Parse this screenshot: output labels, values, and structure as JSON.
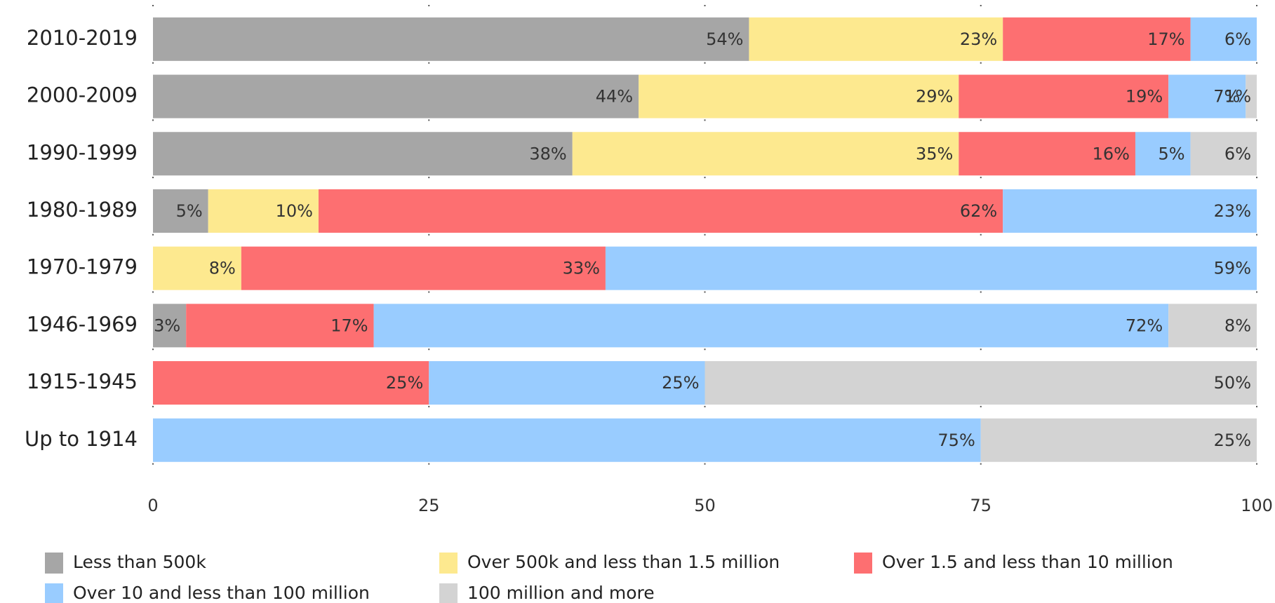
{
  "chart_data": {
    "type": "stacked_barh",
    "categories": [
      "2010-2019",
      "2000-2009",
      "1990-1999",
      "1980-1989",
      "1970-1979",
      "1946-1969",
      "1915-1945",
      "Up to 1914"
    ],
    "series": [
      {
        "name": "Less than 500k",
        "color": "#a6a6a6",
        "values": [
          54,
          44,
          38,
          5,
          null,
          3,
          null,
          null
        ],
        "value_labels": [
          "54%",
          "44%",
          "38%",
          "5%",
          null,
          "3%",
          null,
          null
        ]
      },
      {
        "name": "Over 500k and less than 1.5 million",
        "color": "#fde98f",
        "values": [
          23,
          29,
          35,
          10,
          8,
          null,
          null,
          null
        ],
        "value_labels": [
          "23%",
          "29%",
          "35%",
          "10%",
          "8%",
          null,
          null,
          null
        ]
      },
      {
        "name": "Over 1.5 and less than 10 million",
        "color": "#fd6f71",
        "values": [
          17,
          19,
          16,
          62,
          33,
          17,
          25,
          null
        ],
        "value_labels": [
          "17%",
          "19%",
          "16%",
          "62%",
          "33%",
          "17%",
          "25%",
          null
        ]
      },
      {
        "name": "Over 10 and less than 100 million",
        "color": "#99ccff",
        "values": [
          6,
          7,
          5,
          23,
          59,
          72,
          25,
          75
        ],
        "value_labels": [
          "6%",
          "7%",
          "5%",
          "23%",
          "59%",
          "72%",
          "25%",
          "75%"
        ]
      },
      {
        "name": "100 million and more",
        "color": "#d3d3d3",
        "values": [
          null,
          1,
          6,
          null,
          null,
          8,
          50,
          25
        ],
        "value_labels": [
          null,
          "1%",
          "6%",
          null,
          null,
          "8%",
          "50%",
          "25%"
        ]
      }
    ],
    "xlim": [
      0,
      100
    ],
    "xticks": [
      0,
      25,
      50,
      75,
      100
    ],
    "grid": true
  }
}
